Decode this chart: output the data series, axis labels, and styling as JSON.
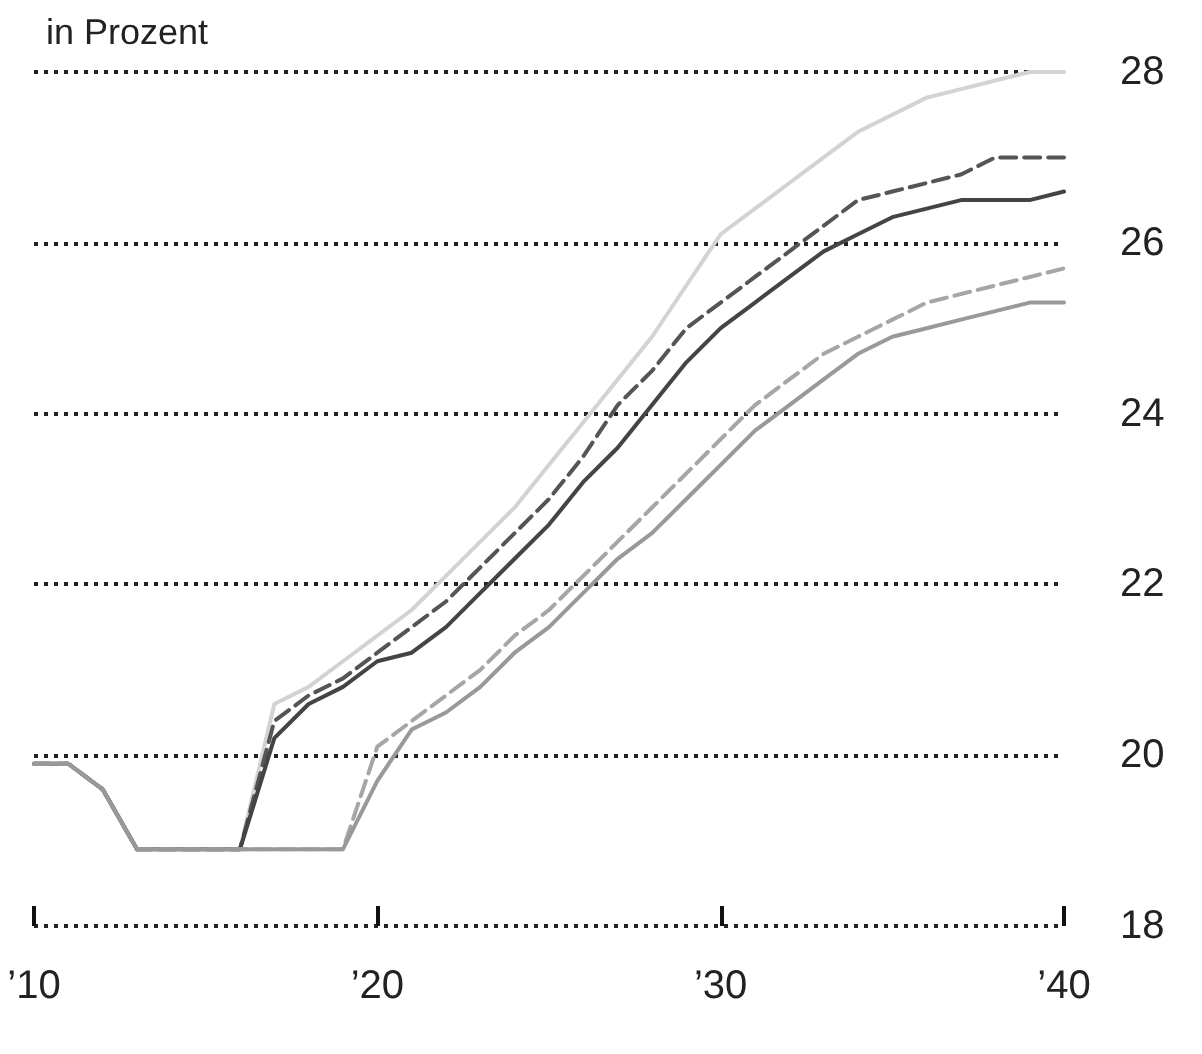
{
  "chart_data": {
    "type": "line",
    "title": "in Prozent",
    "x": [
      2010,
      2011,
      2012,
      2013,
      2014,
      2015,
      2016,
      2017,
      2018,
      2019,
      2020,
      2021,
      2022,
      2023,
      2024,
      2025,
      2026,
      2027,
      2028,
      2029,
      2030,
      2031,
      2032,
      2033,
      2034,
      2035,
      2036,
      2037,
      2038,
      2039,
      2040
    ],
    "series": [
      {
        "color": "#d3d3d3",
        "line_style": "solid",
        "values": [
          19.9,
          19.9,
          19.6,
          18.9,
          18.9,
          18.9,
          18.9,
          20.6,
          20.8,
          21.1,
          21.4,
          21.7,
          22.1,
          22.5,
          22.9,
          23.4,
          23.9,
          24.4,
          24.9,
          25.5,
          26.1,
          26.4,
          26.7,
          27.0,
          27.3,
          27.5,
          27.7,
          27.8,
          27.9,
          28.0,
          28.0
        ]
      },
      {
        "color": "#555555",
        "line_style": "dashed",
        "values": [
          19.9,
          19.9,
          19.6,
          18.9,
          18.9,
          18.9,
          18.9,
          20.4,
          20.7,
          20.9,
          21.2,
          21.5,
          21.8,
          22.2,
          22.6,
          23.0,
          23.5,
          24.1,
          24.5,
          25.0,
          25.3,
          25.6,
          25.9,
          26.2,
          26.5,
          26.6,
          26.7,
          26.8,
          27.0,
          27.0,
          27.0
        ]
      },
      {
        "color": "#444444",
        "line_style": "solid",
        "values": [
          19.9,
          19.9,
          19.6,
          18.9,
          18.9,
          18.9,
          18.9,
          20.2,
          20.6,
          20.8,
          21.1,
          21.2,
          21.5,
          21.9,
          22.3,
          22.7,
          23.2,
          23.6,
          24.1,
          24.6,
          25.0,
          25.3,
          25.6,
          25.9,
          26.1,
          26.3,
          26.4,
          26.5,
          26.5,
          26.5,
          26.6
        ]
      },
      {
        "color": "#a6a6a6",
        "line_style": "dashed",
        "values": [
          19.9,
          19.9,
          19.6,
          18.9,
          18.9,
          18.9,
          18.9,
          18.9,
          18.9,
          18.9,
          20.1,
          20.4,
          20.7,
          21.0,
          21.4,
          21.7,
          22.1,
          22.5,
          22.9,
          23.3,
          23.7,
          24.1,
          24.4,
          24.7,
          24.9,
          25.1,
          25.3,
          25.4,
          25.5,
          25.6,
          25.7
        ]
      },
      {
        "color": "#999999",
        "line_style": "solid",
        "values": [
          19.9,
          19.9,
          19.6,
          18.9,
          18.9,
          18.9,
          18.9,
          18.9,
          18.9,
          18.9,
          19.7,
          20.3,
          20.5,
          20.8,
          21.2,
          21.5,
          21.9,
          22.3,
          22.6,
          23.0,
          23.4,
          23.8,
          24.1,
          24.4,
          24.7,
          24.9,
          25.0,
          25.1,
          25.2,
          25.3,
          25.3
        ]
      }
    ],
    "xlim": [
      2010,
      2040
    ],
    "xticks": [
      {
        "value": 2010,
        "label": "’10"
      },
      {
        "value": 2020,
        "label": "’20"
      },
      {
        "value": 2030,
        "label": "’30"
      },
      {
        "value": 2040,
        "label": "’40"
      }
    ],
    "ylim": [
      18,
      28
    ],
    "yticks": [
      18,
      20,
      22,
      24,
      26,
      28
    ],
    "grid": "y",
    "marker": "none"
  }
}
